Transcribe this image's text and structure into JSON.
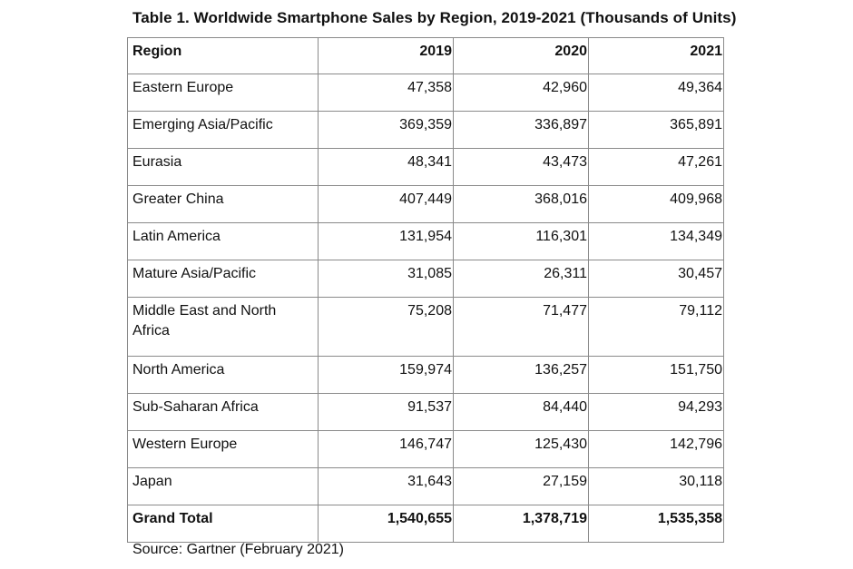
{
  "title": "Table 1. Worldwide Smartphone Sales by Region, 2019-2021 (Thousands of Units)",
  "headers": [
    "Region",
    "2019",
    "2020",
    "2021"
  ],
  "rows": [
    [
      "Eastern Europe",
      "47,358",
      "42,960",
      "49,364"
    ],
    [
      "Emerging Asia/Pacific",
      "369,359",
      "336,897",
      "365,891"
    ],
    [
      "Eurasia",
      "48,341",
      "43,473",
      "47,261"
    ],
    [
      "Greater China",
      "407,449",
      "368,016",
      "409,968"
    ],
    [
      "Latin America",
      "131,954",
      "116,301",
      "134,349"
    ],
    [
      "Mature Asia/Pacific",
      "31,085",
      "26,311",
      "30,457"
    ],
    [
      "Middle East and North Africa",
      "75,208",
      "71,477",
      "79,112"
    ],
    [
      "North America",
      "159,974",
      "136,257",
      "151,750"
    ],
    [
      "Sub-Saharan Africa",
      "91,537",
      "84,440",
      "94,293"
    ],
    [
      "Western Europe",
      "146,747",
      "125,430",
      "142,796"
    ],
    [
      "Japan",
      "31,643",
      "27,159",
      "30,118"
    ]
  ],
  "total": [
    "Grand Total",
    "1,540,655",
    "1,378,719",
    "1,535,358"
  ],
  "source": "Source: Gartner (February 2021)"
}
